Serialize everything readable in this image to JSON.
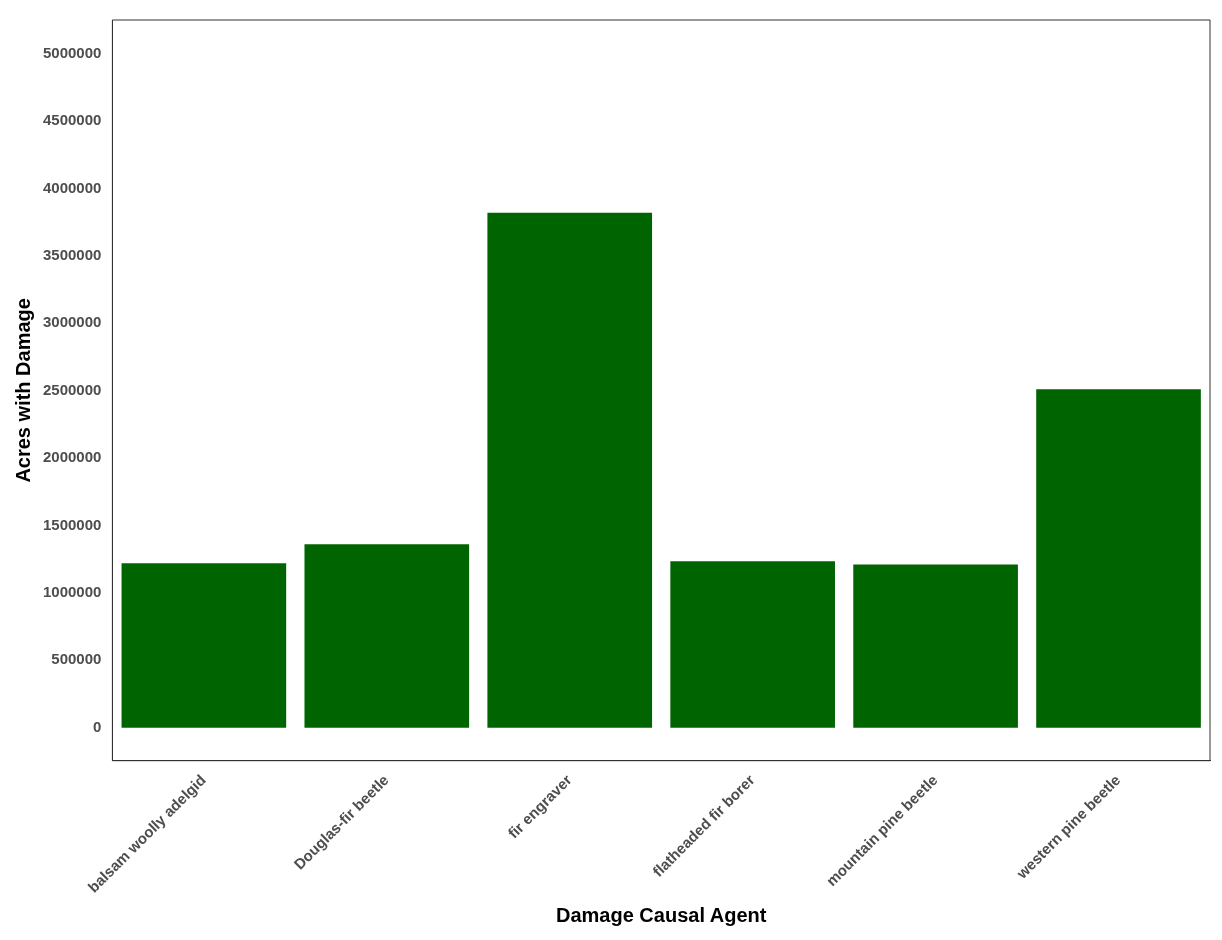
{
  "chart_data": {
    "type": "bar",
    "xlabel": "Damage Causal Agent",
    "ylabel": "Acres with Damage",
    "categories": [
      "balsam woolly adelgid",
      "Douglas-fir beetle",
      "fir engraver",
      "flatheaded fir borer",
      "mountain pine beetle",
      "western pine beetle"
    ],
    "values": [
      1220000,
      1360000,
      3820000,
      1235000,
      1210000,
      2510000
    ],
    "color": "#006400",
    "ylim": [
      -245000,
      5250000
    ],
    "yticks": [
      0,
      500000,
      1000000,
      1500000,
      2000000,
      2500000,
      3000000,
      3500000,
      4000000,
      4500000,
      5000000
    ],
    "grid": false,
    "legend": false
  }
}
